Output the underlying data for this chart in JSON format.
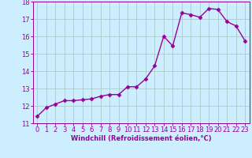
{
  "x": [
    0,
    1,
    2,
    3,
    4,
    5,
    6,
    7,
    8,
    9,
    10,
    11,
    12,
    13,
    14,
    15,
    16,
    17,
    18,
    19,
    20,
    21,
    22,
    23
  ],
  "y": [
    11.4,
    11.9,
    12.1,
    12.3,
    12.3,
    12.35,
    12.4,
    12.55,
    12.65,
    12.65,
    13.1,
    13.1,
    13.55,
    14.3,
    16.0,
    15.45,
    17.35,
    17.25,
    17.1,
    17.6,
    17.55,
    16.85,
    16.6,
    15.75
  ],
  "line_color": "#990099",
  "marker": "D",
  "markersize": 2.5,
  "linewidth": 1,
  "bg_color": "#cceeff",
  "grid_color": "#aacccc",
  "xlabel": "Windchill (Refroidissement éolien,°C)",
  "xlabel_fontsize": 6,
  "tick_fontsize": 6,
  "ylim": [
    11,
    18
  ],
  "xlim": [
    -0.5,
    23.5
  ],
  "yticks": [
    11,
    12,
    13,
    14,
    15,
    16,
    17,
    18
  ],
  "xticks": [
    0,
    1,
    2,
    3,
    4,
    5,
    6,
    7,
    8,
    9,
    10,
    11,
    12,
    13,
    14,
    15,
    16,
    17,
    18,
    19,
    20,
    21,
    22,
    23
  ]
}
